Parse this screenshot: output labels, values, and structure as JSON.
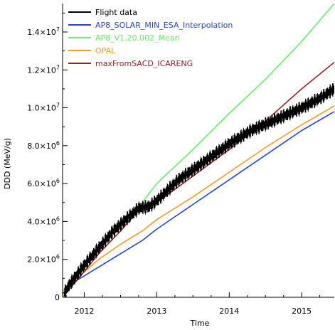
{
  "chart_data": {
    "type": "line",
    "title": "",
    "xlabel": "Time",
    "ylabel": "DDD (MeV/g)",
    "xlim": [
      2011.7,
      2015.45
    ],
    "ylim": [
      0,
      15500000
    ],
    "x_ticks": [
      {
        "value": 2012,
        "label": "2012"
      },
      {
        "value": 2013,
        "label": "2013"
      },
      {
        "value": 2014,
        "label": "2014"
      },
      {
        "value": 2015,
        "label": "2015"
      }
    ],
    "y_ticks": [
      {
        "value": 0,
        "base": "0",
        "exp": ""
      },
      {
        "value": 2000000,
        "base": "2.0×10",
        "exp": "6"
      },
      {
        "value": 4000000,
        "base": "4.0×10",
        "exp": "6"
      },
      {
        "value": 6000000,
        "base": "6.0×10",
        "exp": "6"
      },
      {
        "value": 8000000,
        "base": "8.0×10",
        "exp": "6"
      },
      {
        "value": 10000000,
        "base": "1.0×10",
        "exp": "7"
      },
      {
        "value": 12000000,
        "base": "1.2×10",
        "exp": "7"
      },
      {
        "value": 14000000,
        "base": "1.4×10",
        "exp": "7"
      }
    ],
    "legend_position": "top-left",
    "series": [
      {
        "name": "Flight data",
        "color": "#000000",
        "noisy": true,
        "noise_amplitude": 380000,
        "x": [
          2011.72,
          2011.8,
          2011.9,
          2012.0,
          2012.2,
          2012.4,
          2012.6,
          2012.75,
          2012.9,
          2013.0,
          2013.3,
          2013.6,
          2014.0,
          2014.3,
          2014.6,
          2015.0,
          2015.25,
          2015.45
        ],
        "y": [
          200000,
          700000,
          1200000,
          1700000,
          2600000,
          3500000,
          4200000,
          4700000,
          4800000,
          5100000,
          6200000,
          7000000,
          8100000,
          8800000,
          9300000,
          10000000,
          10500000,
          11000000
        ]
      },
      {
        "name": "AP8_SOLAR_MIN_ESA_Interpolation",
        "color": "#2244dd",
        "noisy": false,
        "x": [
          2011.7,
          2011.9,
          2012.2,
          2012.5,
          2012.8,
          2013.0,
          2013.5,
          2014.0,
          2014.5,
          2015.0,
          2015.45
        ],
        "y": [
          0,
          900000,
          1600000,
          2300000,
          3000000,
          3600000,
          4900000,
          6200000,
          7500000,
          8800000,
          9800000
        ]
      },
      {
        "name": "AP8_V1.20.002_Mean",
        "color": "#66ee66",
        "noisy": false,
        "x": [
          2011.7,
          2011.9,
          2012.2,
          2012.5,
          2012.8,
          2013.0,
          2013.5,
          2014.0,
          2014.5,
          2015.0,
          2015.45
        ],
        "y": [
          300000,
          1300000,
          2600000,
          3900000,
          5000000,
          6000000,
          7800000,
          9700000,
          11500000,
          13500000,
          15500000
        ]
      },
      {
        "name": "OPAL",
        "color": "#ff9922",
        "noisy": false,
        "x": [
          2011.7,
          2011.9,
          2012.2,
          2012.5,
          2012.8,
          2013.0,
          2013.5,
          2014.0,
          2014.5,
          2015.0,
          2015.45
        ],
        "y": [
          0,
          1000000,
          2000000,
          2800000,
          3500000,
          4100000,
          5300000,
          6600000,
          7900000,
          9100000,
          10100000
        ]
      },
      {
        "name": "maxFromSACD_ICARENG",
        "color": "#992222",
        "noisy": false,
        "x": [
          2011.7,
          2011.9,
          2012.2,
          2012.5,
          2012.8,
          2013.0,
          2013.5,
          2014.0,
          2014.5,
          2015.0,
          2015.45
        ],
        "y": [
          200000,
          900000,
          2300000,
          3500000,
          4800000,
          5000000,
          6400000,
          7800000,
          9300000,
          11000000,
          12400000
        ]
      }
    ]
  }
}
